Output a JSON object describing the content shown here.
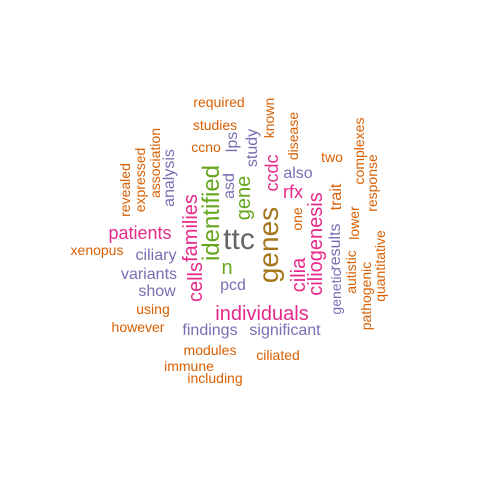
{
  "colors": {
    "orange": "#d95f02",
    "purple": "#7570b3",
    "pink": "#e7298a",
    "green": "#66a61e",
    "brown": "#a6761d",
    "gray": "#666666"
  },
  "words": {
    "ttc": "ttc",
    "genes": "genes",
    "identified": "identified",
    "families": "families",
    "cells": "cells",
    "individuals": "individuals",
    "patients": "patients",
    "gene": "gene",
    "n": "n",
    "cilia": "cilia",
    "ciliogenesis": "ciliogenesis",
    "rfx": "rfx",
    "ccdc": "ccdc",
    "variants": "variants",
    "ciliary": "ciliary",
    "show": "show",
    "findings": "findings",
    "significant": "significant",
    "pcd": "pcd",
    "asd": "asd",
    "also": "also",
    "study": "study",
    "lps": "lps",
    "analysis": "analysis",
    "results": "results",
    "genetic": "genetic",
    "trait": "trait",
    "autistic": "autistic",
    "lower": "lower",
    "complexes": "complexes",
    "response": "response",
    "pathogenic": "pathogenic",
    "quantitative": "quantitative",
    "two": "two",
    "one": "one",
    "disease": "disease",
    "known": "known",
    "required": "required",
    "studies": "studies",
    "ccno": "ccno",
    "xenopus": "xenopus",
    "association": "association",
    "expressed": "expressed",
    "revealed": "revealed",
    "using": "using",
    "however": "however",
    "modules": "modules",
    "ciliated": "ciliated",
    "immune": "immune",
    "including": "including"
  }
}
